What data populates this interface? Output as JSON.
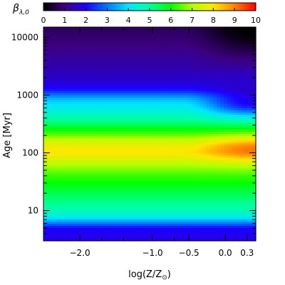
{
  "chart_data": {
    "type": "heatmap",
    "colorbar": {
      "label_main": "β",
      "label_sub": "λ,0",
      "ticks": [
        "0",
        "1",
        "2",
        "3",
        "4",
        "5",
        "6",
        "7",
        "8",
        "9",
        "10"
      ],
      "range": [
        0,
        10
      ],
      "colormap": [
        "#000000",
        "#3c0080",
        "#1c00ff",
        "#0078ff",
        "#00e6ff",
        "#00ffa0",
        "#00ff00",
        "#b4ff00",
        "#ffe600",
        "#ff8200",
        "#ff0000"
      ]
    },
    "x_axis": {
      "title_text": "log(Z/Z",
      "title_sub": "⊙",
      "title_close": ")",
      "range": [
        -2.5,
        0.42
      ],
      "ticks": [
        {
          "value": -2.0,
          "label": "−2.0"
        },
        {
          "value": -1.0,
          "label": "−1.0"
        },
        {
          "value": -0.5,
          "label": "−0.5"
        },
        {
          "value": 0.0,
          "label": "0.0"
        },
        {
          "value": 0.3,
          "label": "0.3"
        }
      ],
      "extra_minor_ticks": [
        -1.7,
        -1.4,
        -0.7
      ]
    },
    "y_axis": {
      "title": "Age [Myr]",
      "scale": "log",
      "range": [
        3,
        15000
      ],
      "ticks": [
        {
          "value": 10,
          "label": "10"
        },
        {
          "value": 100,
          "label": "100"
        },
        {
          "value": 1000,
          "label": "1000"
        },
        {
          "value": 10000,
          "label": "10000"
        }
      ]
    },
    "profile_age_myr": [
      3,
      4.2,
      4.8,
      5.3,
      6,
      8,
      10,
      15,
      20,
      30,
      40,
      55,
      70,
      85,
      100,
      130,
      160,
      200,
      300,
      400,
      500,
      600,
      700,
      850,
      1000,
      1200,
      1500,
      2000,
      2300,
      3000,
      5000,
      10000,
      15000
    ],
    "profile_beta": [
      1.8,
      1.9,
      2.0,
      2.3,
      3.0,
      4.3,
      4.8,
      5.2,
      5.5,
      6.0,
      6.3,
      6.8,
      7.3,
      7.7,
      8.0,
      7.8,
      7.3,
      6.6,
      5.5,
      4.9,
      4.5,
      4.2,
      4.0,
      3.6,
      3.0,
      2.2,
      1.8,
      1.55,
      1.5,
      1.35,
      1.15,
      0.85,
      0.7
    ],
    "high_metallicity": {
      "from_logz": -0.6,
      "to_logz": 0.35,
      "peak_beta_boost": 1.2,
      "peak_age_myr": 120,
      "intermediate_age_drop": 2.0,
      "intermediate_age_myr": 700,
      "old_age_drop": 0.8
    }
  }
}
